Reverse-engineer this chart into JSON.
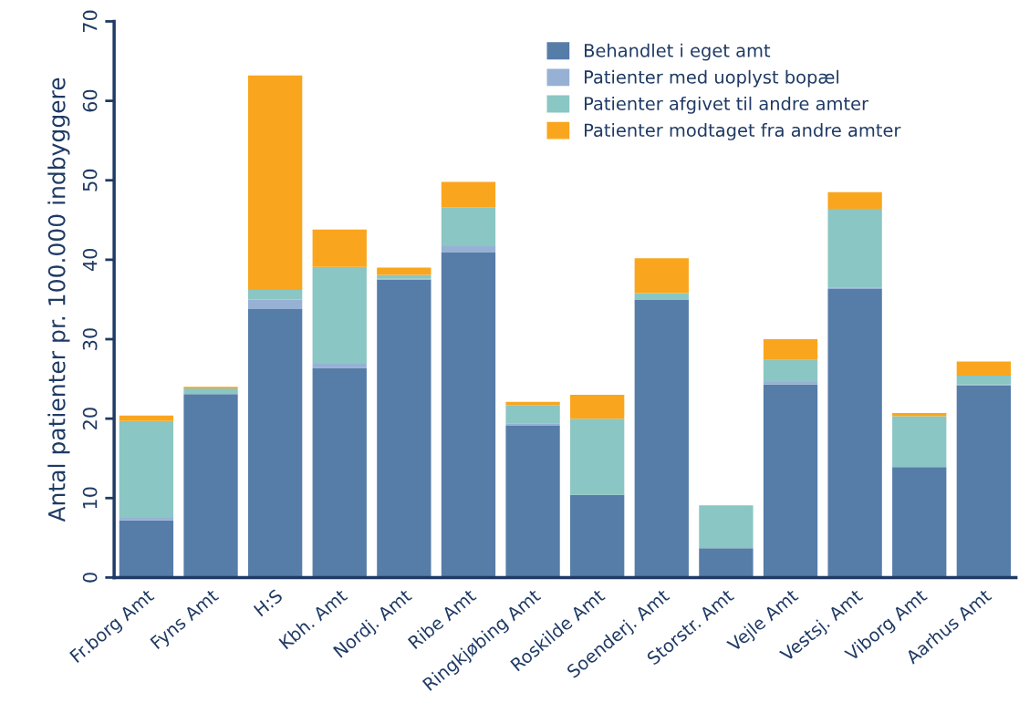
{
  "chart_data": {
    "type": "bar",
    "stacked": true,
    "ylabel": "Antal patienter pr. 100.000 indbyggere",
    "categories": [
      "Fr.borg Amt",
      "Fyns Amt",
      "H:S",
      "Kbh. Amt",
      "Nordj. Amt",
      "Ribe Amt",
      "Ringkjøbing Amt",
      "Roskilde Amt",
      "Soenderj. Amt",
      "Storstr. Amt",
      "Vejle Amt",
      "Vestsj. Amt",
      "Viborg Amt",
      "Aarhus Amt"
    ],
    "series": [
      {
        "name": "Behandlet i eget amt",
        "color": "#567ca8",
        "values": [
          7.2,
          23.1,
          33.8,
          26.4,
          37.5,
          40.9,
          19.1,
          10.4,
          35.0,
          3.7,
          24.3,
          36.3,
          13.9,
          24.2
        ]
      },
      {
        "name": "Patienter med uoplyst bopæl",
        "color": "#96b1d4",
        "values": [
          0.3,
          0,
          1.2,
          0.5,
          0.1,
          0.8,
          0.3,
          0,
          0,
          0,
          0.3,
          0.2,
          0,
          0.1
        ]
      },
      {
        "name": "Patienter afgivet til andre amter",
        "color": "#8ac6c3",
        "values": [
          12.2,
          0.7,
          1.2,
          12.2,
          0.5,
          4.9,
          2.3,
          9.6,
          0.8,
          5.4,
          2.8,
          9.9,
          6.4,
          1.1
        ]
      },
      {
        "name": "Patienter modtaget fra andre amter",
        "color": "#f9a61e",
        "values": [
          0.7,
          0.2,
          27.0,
          4.7,
          0.9,
          3.2,
          0.4,
          3.0,
          4.4,
          0,
          2.6,
          2.1,
          0.4,
          1.8
        ]
      }
    ],
    "ylim": [
      0,
      70
    ],
    "yticks": [
      0,
      10,
      20,
      30,
      40,
      50,
      60,
      70
    ],
    "grid": false,
    "legend": "top right"
  }
}
